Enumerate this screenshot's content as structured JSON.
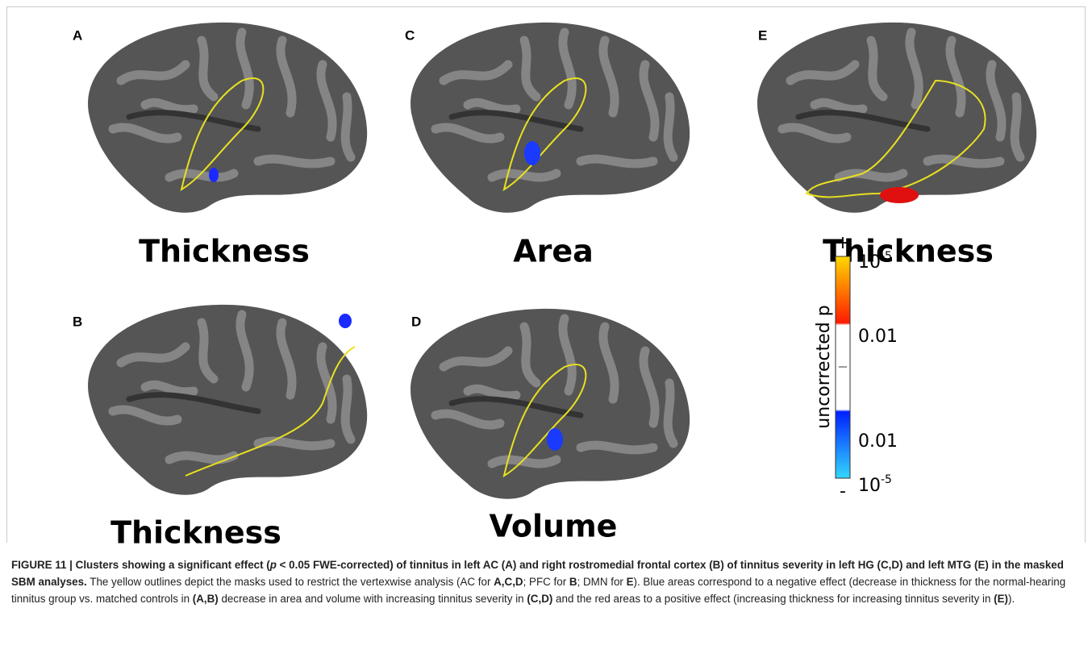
{
  "panels": [
    {
      "letter": "A",
      "label": "Thickness"
    },
    {
      "letter": "C",
      "label": "Area"
    },
    {
      "letter": "E",
      "label": "Thickness"
    },
    {
      "letter": "B",
      "label": "Thickness"
    },
    {
      "letter": "D",
      "label": "Volume"
    }
  ],
  "colorbar": {
    "title": "uncorrected p",
    "plus": "+",
    "minus": "-",
    "ticks": [
      {
        "base": "10",
        "exp": "-5"
      },
      "0.01",
      "0.01",
      {
        "base": "10",
        "exp": "-5"
      }
    ]
  },
  "caption": {
    "segments": [
      {
        "text": "FIGURE 11 | Clusters showing a significant effect (",
        "style": "bold"
      },
      {
        "text": "p",
        "style": "bold-italic"
      },
      {
        "text": " < 0.05 FWE-corrected) of tinnitus in left AC (A) and right rostromedial frontal cortex (B) of tinnitus severity in left HG (C,D) and left MTG (E) in the masked SBM analyses.",
        "style": "bold"
      },
      {
        "text": " The yellow outlines depict the masks used to restrict the vertexwise analysis (AC for ",
        "style": "normal"
      },
      {
        "text": "A,C,D",
        "style": "bold"
      },
      {
        "text": "; PFC for ",
        "style": "normal"
      },
      {
        "text": "B",
        "style": "bold"
      },
      {
        "text": "; DMN for ",
        "style": "normal"
      },
      {
        "text": "E",
        "style": "bold"
      },
      {
        "text": "). Blue areas correspond to a negative effect (decrease in thickness for the normal-hearing tinnitus group vs. matched controls in ",
        "style": "normal"
      },
      {
        "text": "(A,B)",
        "style": "bold"
      },
      {
        "text": " decrease in area and volume with increasing tinnitus severity in ",
        "style": "normal"
      },
      {
        "text": "(C,D)",
        "style": "bold"
      },
      {
        "text": " and the red areas to a positive effect (increasing thickness for increasing tinnitus severity in ",
        "style": "normal"
      },
      {
        "text": "(E)",
        "style": "bold"
      },
      {
        "text": ").",
        "style": "normal"
      }
    ]
  }
}
